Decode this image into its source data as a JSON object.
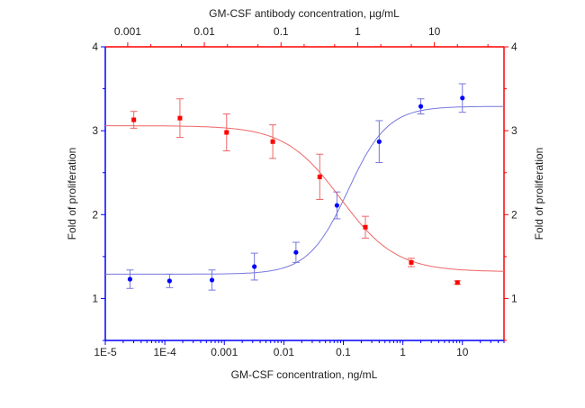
{
  "chart_data": {
    "type": "scatter",
    "xlabel_bottom": "GM-CSF concentration, ng/mL",
    "xlabel_top": "GM-CSF antibody concentration, µg/mL",
    "ylabel_left": "Fold of proliferation",
    "ylabel_right": "Fold of proliferation",
    "x_bottom_scale": "log",
    "x_top_scale": "log",
    "x_bottom_range": [
      1e-05,
      50
    ],
    "x_top_range": [
      0.00051,
      81
    ],
    "y_range": [
      0.5,
      4
    ],
    "x_bottom_ticks": [
      "1E-5",
      "1E-4",
      "0.001",
      "0.01",
      "0.1",
      "1",
      "10"
    ],
    "x_top_ticks": [
      "0.001",
      "0.01",
      "0.1",
      "1",
      "10"
    ],
    "y_ticks": [
      "1",
      "2",
      "3",
      "4"
    ],
    "grid": false,
    "colors": {
      "bottom_series": "#0000ff",
      "top_series": "#ff0000",
      "bottom_fit": "#7777dd",
      "top_fit": "#ee6666"
    },
    "series": [
      {
        "axis": "bottom-left",
        "marker": "circle",
        "x": [
          2.6e-05,
          0.00012,
          0.00062,
          0.0032,
          0.016,
          0.078,
          0.4,
          2.0,
          10
        ],
        "y": [
          1.23,
          1.21,
          1.22,
          1.38,
          1.55,
          2.11,
          2.87,
          3.29,
          3.39
        ],
        "err": [
          0.11,
          0.08,
          0.12,
          0.16,
          0.12,
          0.16,
          0.25,
          0.09,
          0.17
        ],
        "fit": {
          "bottom": 1.29,
          "top": 3.29,
          "ec50": 0.12,
          "hill": 1.3
        }
      },
      {
        "axis": "top-right",
        "marker": "square",
        "x": [
          0.0012,
          0.0048,
          0.0195,
          0.078,
          0.32,
          1.26,
          5.0,
          20
        ],
        "y": [
          3.13,
          3.15,
          2.98,
          2.87,
          2.45,
          1.85,
          1.43,
          1.19
        ],
        "err": [
          0.1,
          0.23,
          0.22,
          0.2,
          0.27,
          0.13,
          0.05,
          0.02
        ],
        "fit": {
          "bottom": 1.32,
          "top": 3.06,
          "ec50": 0.6,
          "hill": -1.2
        }
      }
    ]
  }
}
